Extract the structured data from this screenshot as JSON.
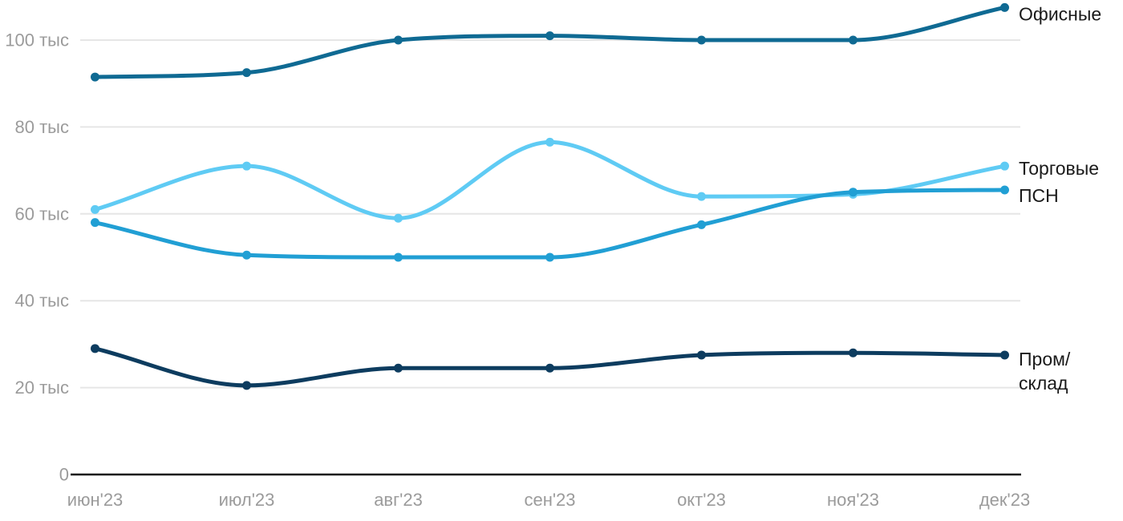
{
  "chart_data": {
    "type": "line",
    "title": "",
    "x_categories": [
      "июн'23",
      "июл'23",
      "авг'23",
      "сен'23",
      "окт'23",
      "ноя'23",
      "дек'23"
    ],
    "y_ticks": [
      {
        "value": 100,
        "label": "100 тыс"
      },
      {
        "value": 80,
        "label": "80 тыс"
      },
      {
        "value": 60,
        "label": "60 тыс"
      },
      {
        "value": 40,
        "label": "40 тыс"
      },
      {
        "value": 20,
        "label": "20 тыс"
      },
      {
        "value": 0,
        "label": "0"
      }
    ],
    "ylim": [
      0,
      110
    ],
    "grid": "horizontal",
    "legend_position": "right-end-labels",
    "unit": "тыс",
    "series": [
      {
        "key": "offices",
        "name": "Офисные",
        "color": "#0f6a93",
        "values": [
          91.5,
          92.5,
          100,
          101,
          100,
          100,
          107.5
        ]
      },
      {
        "key": "retail",
        "name": "Торговые",
        "color": "#5fcbf4",
        "values": [
          61,
          71,
          59,
          76.5,
          64,
          64.5,
          71
        ]
      },
      {
        "key": "psn",
        "name": "ПСН",
        "color": "#219fd4",
        "values": [
          58,
          50.5,
          50,
          50,
          57.5,
          65,
          65.5
        ]
      },
      {
        "key": "industrial",
        "name": "Пром/склад",
        "color": "#0d3c5f",
        "values": [
          29,
          20.5,
          24.5,
          24.5,
          27.5,
          28,
          27.5
        ],
        "label_lines": [
          "Пром/",
          "склад"
        ]
      }
    ],
    "colors": {
      "grid": "#e6e6e6",
      "axis": "#111111",
      "tick_text": "#9b9b9b",
      "label_text": "#1a1a1a",
      "background": "#ffffff"
    }
  }
}
